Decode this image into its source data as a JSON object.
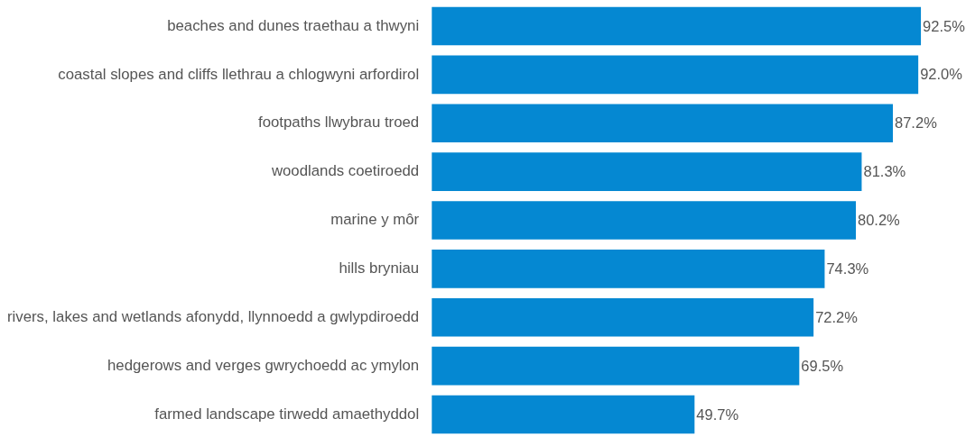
{
  "chart_data": {
    "type": "bar",
    "orientation": "horizontal",
    "categories": [
      "beaches and dunes traethau a thwyni",
      "coastal slopes and cliffs llethrau a chlogwyni arfordirol",
      "footpaths llwybrau troed",
      "woodlands coetiroedd",
      "marine y môr",
      "hills bryniau",
      "rivers, lakes and wetlands afonydd, llynnoedd a gwlypdiroedd",
      "hedgerows and verges gwrychoedd ac ymylon",
      "farmed landscape tirwedd amaethyddol"
    ],
    "values": [
      92.5,
      92.0,
      87.2,
      81.3,
      80.2,
      74.3,
      72.2,
      69.5,
      49.7
    ],
    "color": "#0588d2",
    "value_labels": [
      "92.5%",
      "92.0%",
      "87.2%",
      "81.3%",
      "80.2%",
      "74.3%",
      "72.2%",
      "69.5%",
      "49.7%"
    ]
  }
}
